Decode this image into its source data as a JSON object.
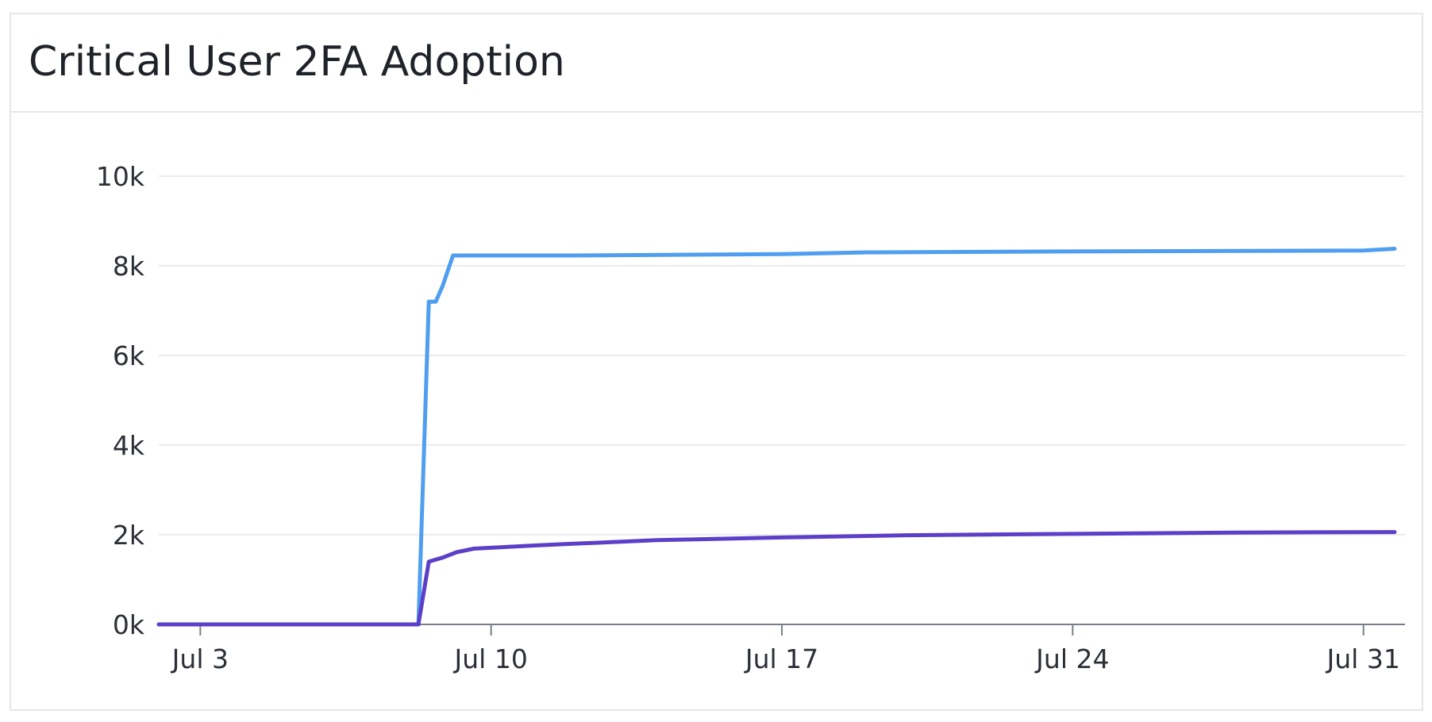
{
  "panel": {
    "title": "Critical User 2FA Adoption"
  },
  "colors": {
    "series_light": "#4f9ef0",
    "series_dark": "#5b3fc8",
    "grid": "#ececec",
    "axis": "#7a7f87"
  },
  "chart_data": {
    "type": "line",
    "title": "Critical User 2FA Adoption",
    "xlabel": "",
    "ylabel": "",
    "x_axis": {
      "type": "date",
      "range": [
        "2024-07-02",
        "2024-08-01"
      ],
      "ticks": [
        {
          "date": "2024-07-03",
          "label": "Jul 3"
        },
        {
          "date": "2024-07-10",
          "label": "Jul 10"
        },
        {
          "date": "2024-07-17",
          "label": "Jul 17"
        },
        {
          "date": "2024-07-24",
          "label": "Jul 24"
        },
        {
          "date": "2024-07-31",
          "label": "Jul 31"
        }
      ]
    },
    "y_axis": {
      "range": [
        0,
        10000
      ],
      "ticks": [
        {
          "value": 0,
          "label": "0k"
        },
        {
          "value": 2000,
          "label": "2k"
        },
        {
          "value": 4000,
          "label": "4k"
        },
        {
          "value": 6000,
          "label": "6k"
        },
        {
          "value": 8000,
          "label": "8k"
        },
        {
          "value": 10000,
          "label": "10k"
        }
      ]
    },
    "grid": true,
    "legend": "none",
    "series": [
      {
        "color": "#4f9ef0",
        "points": [
          {
            "x": "2024-07-02 00:00",
            "y": 0
          },
          {
            "x": "2024-07-08 06:00",
            "y": 0
          },
          {
            "x": "2024-07-08 12:00",
            "y": 7200
          },
          {
            "x": "2024-07-08 16:00",
            "y": 7200
          },
          {
            "x": "2024-07-08 20:00",
            "y": 7550
          },
          {
            "x": "2024-07-09 02:00",
            "y": 8230
          },
          {
            "x": "2024-07-12 00:00",
            "y": 8230
          },
          {
            "x": "2024-07-17 00:00",
            "y": 8260
          },
          {
            "x": "2024-07-19 00:00",
            "y": 8300
          },
          {
            "x": "2024-07-24 00:00",
            "y": 8320
          },
          {
            "x": "2024-07-31 00:00",
            "y": 8340
          },
          {
            "x": "2024-07-31 18:00",
            "y": 8380
          }
        ]
      },
      {
        "color": "#5b3fc8",
        "points": [
          {
            "x": "2024-07-02 00:00",
            "y": 0
          },
          {
            "x": "2024-07-08 06:00",
            "y": 0
          },
          {
            "x": "2024-07-08 12:00",
            "y": 1400
          },
          {
            "x": "2024-07-08 20:00",
            "y": 1490
          },
          {
            "x": "2024-07-09 04:00",
            "y": 1610
          },
          {
            "x": "2024-07-09 14:00",
            "y": 1690
          },
          {
            "x": "2024-07-10 00:00",
            "y": 1710
          },
          {
            "x": "2024-07-11 00:00",
            "y": 1760
          },
          {
            "x": "2024-07-12 00:00",
            "y": 1800
          },
          {
            "x": "2024-07-14 00:00",
            "y": 1880
          },
          {
            "x": "2024-07-17 00:00",
            "y": 1940
          },
          {
            "x": "2024-07-20 00:00",
            "y": 1990
          },
          {
            "x": "2024-07-24 00:00",
            "y": 2020
          },
          {
            "x": "2024-07-28 00:00",
            "y": 2050
          },
          {
            "x": "2024-07-31 18:00",
            "y": 2060
          }
        ]
      }
    ]
  }
}
